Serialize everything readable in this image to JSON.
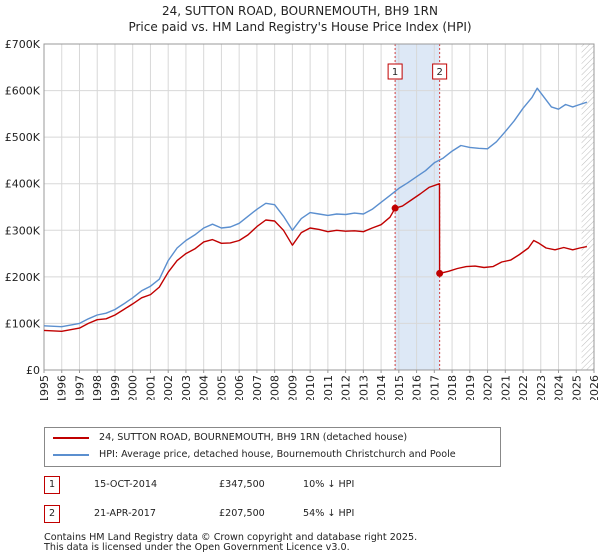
{
  "title": {
    "line1": "24, SUTTON ROAD, BOURNEMOUTH, BH9 1RN",
    "line2": "Price paid vs. HM Land Registry's House Price Index (HPI)"
  },
  "colors": {
    "property": "#c00000",
    "hpi": "#5b8fcf",
    "grid": "#d8d8d8",
    "shade": "#dde8f6",
    "vline": "#d04040"
  },
  "chart_data": {
    "type": "line",
    "title": "Price paid vs. HM Land Registry's House Price Index (HPI)",
    "xlabel": "",
    "ylabel": "",
    "xlim": [
      1995,
      2026
    ],
    "ylim": [
      0,
      700000
    ],
    "grid": true,
    "x_ticks": [
      1995,
      1996,
      1997,
      1998,
      1999,
      2000,
      2001,
      2002,
      2003,
      2004,
      2005,
      2006,
      2007,
      2008,
      2009,
      2010,
      2011,
      2012,
      2013,
      2014,
      2015,
      2016,
      2017,
      2018,
      2019,
      2020,
      2021,
      2022,
      2023,
      2024,
      2025,
      2026
    ],
    "x_tick_labels": [
      "1995",
      "1996",
      "1997",
      "1998",
      "1999",
      "2000",
      "2001",
      "2002",
      "2003",
      "2004",
      "2005",
      "2006",
      "2007",
      "2008",
      "2009",
      "2010",
      "2011",
      "2012",
      "2013",
      "2014",
      "2015",
      "2016",
      "2017",
      "2018",
      "2019",
      "2020",
      "2021",
      "2022",
      "2023",
      "2024",
      "2025",
      "2026"
    ],
    "y_ticks": [
      0,
      100000,
      200000,
      300000,
      400000,
      500000,
      600000,
      700000
    ],
    "y_tick_labels": [
      "£0",
      "£100K",
      "£200K",
      "£300K",
      "£400K",
      "£500K",
      "£600K",
      "£700K"
    ],
    "shaded_span": [
      2014.79,
      2017.3
    ],
    "future_hatch_from": 2025.3,
    "series": [
      {
        "name": "24, SUTTON ROAD, BOURNEMOUTH, BH9 1RN (detached house)",
        "color": "#c00000",
        "x": [
          1995.0,
          1996.0,
          1997.0,
          1997.5,
          1998.0,
          1998.5,
          1999.0,
          1999.5,
          2000.0,
          2000.5,
          2001.0,
          2001.5,
          2002.0,
          2002.5,
          2003.0,
          2003.5,
          2004.0,
          2004.5,
          2005.0,
          2005.5,
          2006.0,
          2006.5,
          2007.0,
          2007.5,
          2008.0,
          2008.5,
          2009.0,
          2009.5,
          2010.0,
          2010.5,
          2011.0,
          2011.5,
          2012.0,
          2012.5,
          2013.0,
          2013.5,
          2014.0,
          2014.5,
          2014.79,
          2015.2,
          2015.7,
          2016.2,
          2016.7,
          2017.29,
          2017.3,
          2017.8,
          2018.3,
          2018.8,
          2019.3,
          2019.8,
          2020.3,
          2020.8,
          2021.3,
          2021.8,
          2022.3,
          2022.6,
          2022.9,
          2023.3,
          2023.8,
          2024.3,
          2024.8,
          2025.2,
          2025.6
        ],
        "y": [
          85000,
          83000,
          90000,
          100000,
          108000,
          110000,
          118000,
          130000,
          142000,
          155000,
          162000,
          178000,
          210000,
          235000,
          250000,
          260000,
          275000,
          280000,
          272000,
          273000,
          278000,
          290000,
          308000,
          322000,
          320000,
          300000,
          268000,
          295000,
          305000,
          302000,
          297000,
          300000,
          298000,
          299000,
          297000,
          305000,
          312000,
          328000,
          347500,
          352000,
          365000,
          378000,
          392000,
          400000,
          207500,
          212000,
          218000,
          222000,
          223000,
          220000,
          222000,
          232000,
          236000,
          248000,
          262000,
          278000,
          272000,
          262000,
          258000,
          263000,
          258000,
          262000,
          265000
        ],
        "markers": [
          {
            "x": 2014.79,
            "y": 347500,
            "label": "1"
          },
          {
            "x": 2017.3,
            "y": 207500,
            "label": "2"
          }
        ]
      },
      {
        "name": "HPI: Average price, detached house, Bournemouth Christchurch and Poole",
        "color": "#5b8fcf",
        "x": [
          1995.0,
          1996.0,
          1997.0,
          1997.5,
          1998.0,
          1998.5,
          1999.0,
          1999.5,
          2000.0,
          2000.5,
          2001.0,
          2001.5,
          2002.0,
          2002.5,
          2003.0,
          2003.5,
          2004.0,
          2004.5,
          2005.0,
          2005.5,
          2006.0,
          2006.5,
          2007.0,
          2007.5,
          2008.0,
          2008.5,
          2009.0,
          2009.5,
          2010.0,
          2010.5,
          2011.0,
          2011.5,
          2012.0,
          2012.5,
          2013.0,
          2013.5,
          2014.0,
          2014.5,
          2015.0,
          2015.5,
          2016.0,
          2016.5,
          2017.0,
          2017.5,
          2018.0,
          2018.5,
          2019.0,
          2019.5,
          2020.0,
          2020.5,
          2021.0,
          2021.5,
          2022.0,
          2022.5,
          2022.8,
          2023.2,
          2023.6,
          2024.0,
          2024.4,
          2024.8,
          2025.2,
          2025.6
        ],
        "y": [
          95000,
          93000,
          100000,
          110000,
          118000,
          122000,
          130000,
          142000,
          155000,
          170000,
          180000,
          195000,
          235000,
          262000,
          278000,
          290000,
          305000,
          313000,
          305000,
          307000,
          315000,
          330000,
          345000,
          358000,
          355000,
          330000,
          300000,
          325000,
          338000,
          335000,
          332000,
          335000,
          334000,
          337000,
          335000,
          345000,
          360000,
          375000,
          390000,
          402000,
          415000,
          428000,
          445000,
          455000,
          470000,
          482000,
          478000,
          476000,
          475000,
          490000,
          512000,
          535000,
          562000,
          585000,
          605000,
          585000,
          565000,
          560000,
          570000,
          565000,
          570000,
          575000
        ]
      }
    ]
  },
  "legend": {
    "property_label": "24, SUTTON ROAD, BOURNEMOUTH, BH9 1RN (detached house)",
    "hpi_label": "HPI: Average price, detached house, Bournemouth Christchurch and Poole"
  },
  "annotations": [
    {
      "num": "1",
      "date": "15-OCT-2014",
      "price": "£347,500",
      "pct": "10% ↓ HPI"
    },
    {
      "num": "2",
      "date": "21-APR-2017",
      "price": "£207,500",
      "pct": "54% ↓ HPI"
    }
  ],
  "footer": {
    "line1": "Contains HM Land Registry data © Crown copyright and database right 2025.",
    "line2": "This data is licensed under the Open Government Licence v3.0."
  }
}
